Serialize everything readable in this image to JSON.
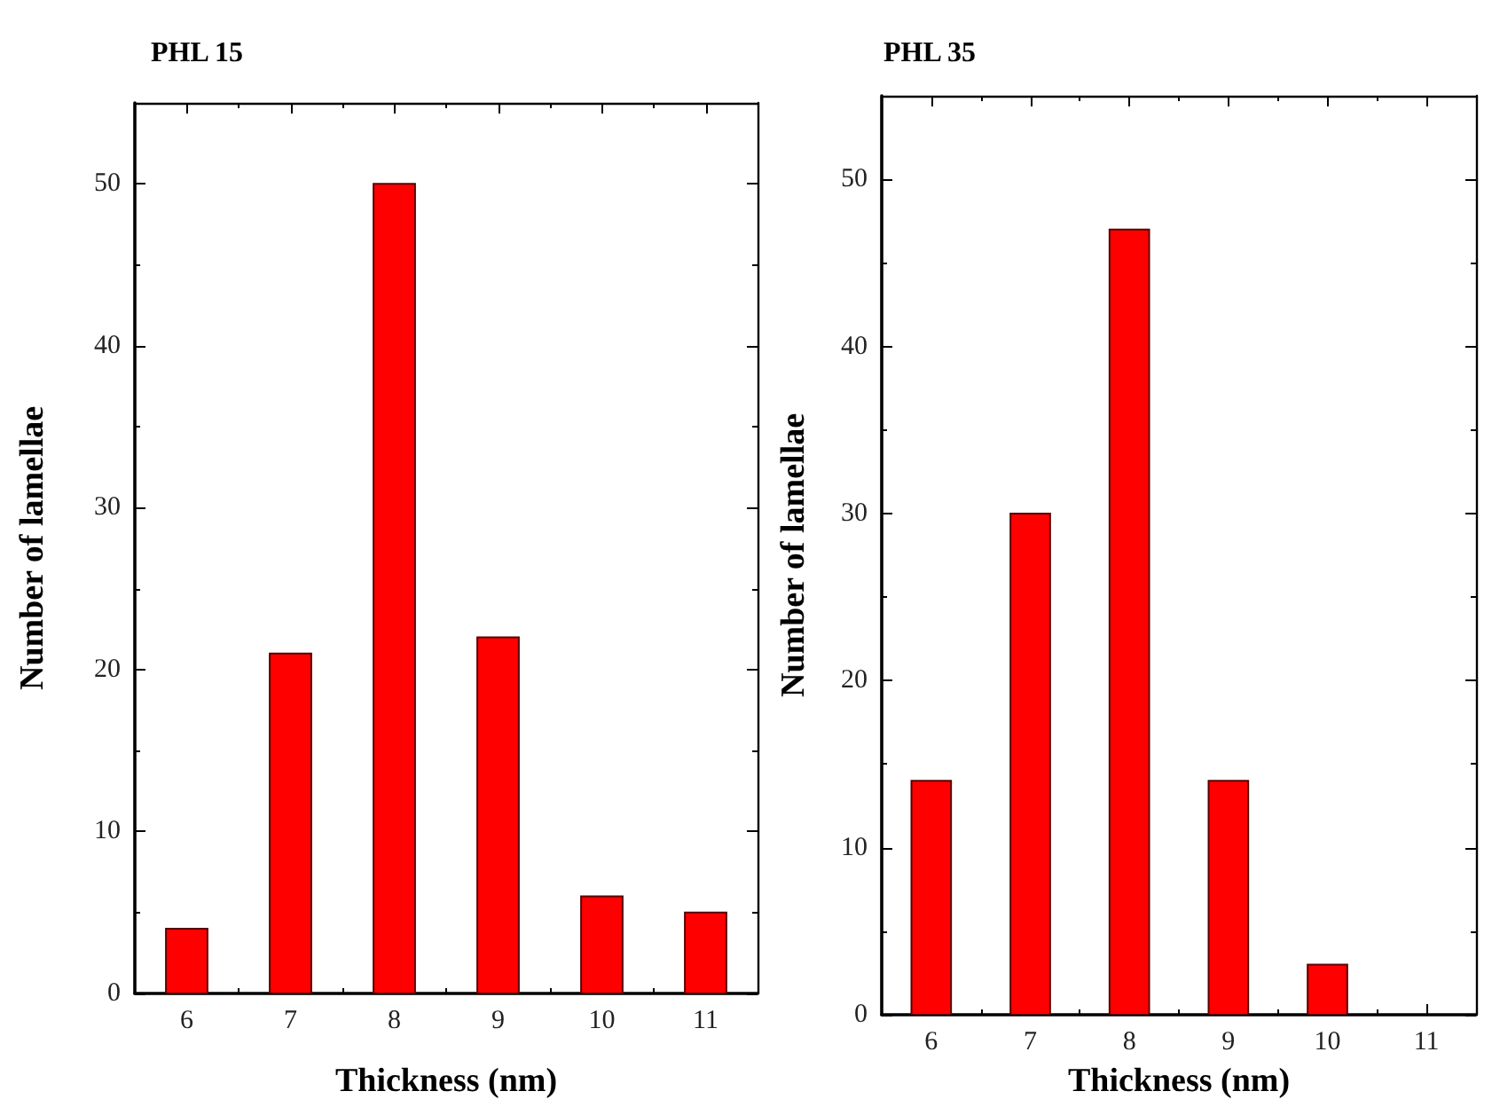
{
  "chart_data": [
    {
      "type": "bar",
      "title": "PHL 15",
      "xlabel": "Thickness (nm)",
      "ylabel": "Number of lamellae",
      "x": [
        6,
        7,
        8,
        9,
        10,
        11
      ],
      "values": [
        4,
        21,
        50,
        22,
        6,
        5
      ],
      "color": "#ff0000",
      "xlim": [
        5.5,
        11.5
      ],
      "xticks": [
        6,
        7,
        8,
        9,
        10,
        11
      ],
      "ylim": [
        0,
        55
      ],
      "yticks": [
        0,
        10,
        20,
        30,
        40,
        50
      ],
      "grid": false
    },
    {
      "type": "bar",
      "title": "PHL 35",
      "xlabel": "Thickness (nm)",
      "ylabel": "Number of lamellae",
      "x": [
        6,
        7,
        8,
        9,
        10
      ],
      "values": [
        14,
        30,
        47,
        14,
        3
      ],
      "color": "#ff0000",
      "xlim": [
        5.5,
        11.5
      ],
      "xticks": [
        6,
        7,
        8,
        9,
        10,
        11
      ],
      "ylim": [
        0,
        55
      ],
      "yticks": [
        0,
        10,
        20,
        30,
        40,
        50
      ],
      "grid": false
    }
  ]
}
